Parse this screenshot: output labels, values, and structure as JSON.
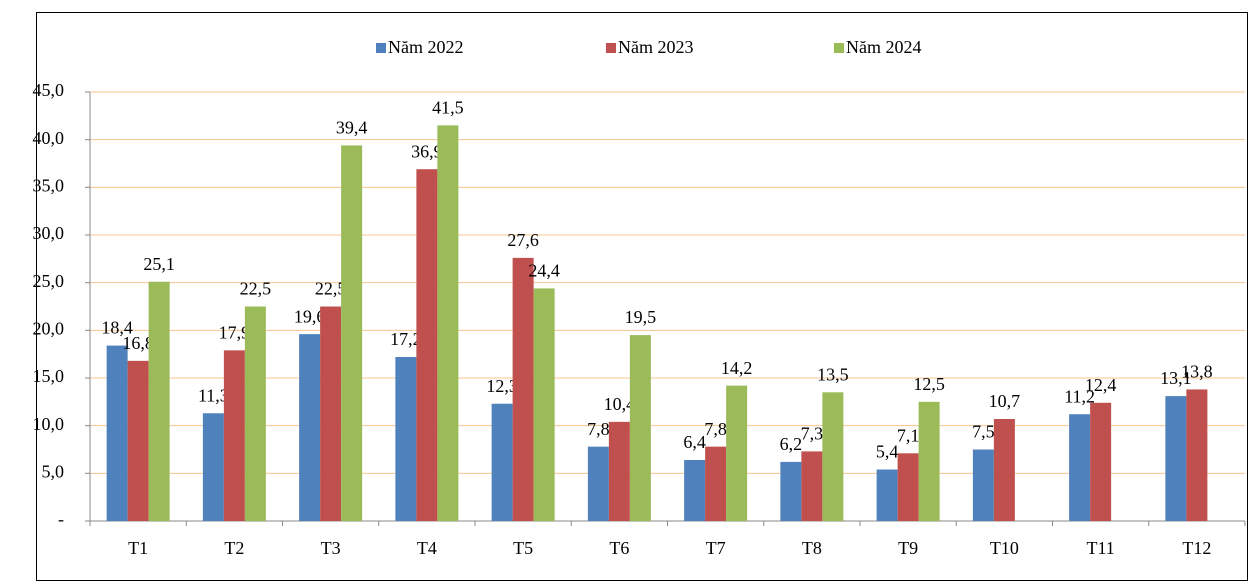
{
  "chart_data": {
    "type": "bar",
    "categories": [
      "T1",
      "T2",
      "T3",
      "T4",
      "T5",
      "T6",
      "T7",
      "T8",
      "T9",
      "T10",
      "T11",
      "T12"
    ],
    "series": [
      {
        "name": "Năm 2022",
        "color": "#4f81bd",
        "values": [
          18.4,
          11.3,
          19.6,
          17.2,
          12.3,
          7.8,
          6.4,
          6.2,
          5.4,
          7.5,
          11.2,
          13.1
        ],
        "value_labels": [
          "18,4",
          "11,3",
          "19,6",
          "17,2",
          "12,3",
          "7,8",
          "6,4",
          "6,2",
          "5,4",
          "7,5",
          "11,2",
          "13,1"
        ]
      },
      {
        "name": "Năm 2023",
        "color": "#c0504d",
        "values": [
          16.8,
          17.9,
          22.5,
          36.9,
          27.6,
          10.4,
          7.8,
          7.3,
          7.1,
          10.7,
          12.4,
          13.8
        ],
        "value_labels": [
          "16,8",
          "17,9",
          "22,5",
          "36,9",
          "27,6",
          "10,4",
          "7,8",
          "7,3",
          "7,1",
          "10,7",
          "12,4",
          "13,8"
        ]
      },
      {
        "name": "Năm 2024",
        "color": "#9bbb59",
        "values": [
          25.1,
          22.5,
          39.4,
          41.5,
          24.4,
          19.5,
          14.2,
          13.5,
          12.5,
          null,
          null,
          null
        ],
        "value_labels": [
          "25,1",
          "22,5",
          "39,4",
          "41,5",
          "24,4",
          "19,5",
          "14,2",
          "13,5",
          "12,5",
          null,
          null,
          null
        ]
      }
    ],
    "ylim": [
      0,
      45
    ],
    "yticks": [
      {
        "value": 0,
        "label": "-"
      },
      {
        "value": 5,
        "label": "5,0"
      },
      {
        "value": 10,
        "label": "10,0"
      },
      {
        "value": 15,
        "label": "15,0"
      },
      {
        "value": 20,
        "label": "20,0"
      },
      {
        "value": 25,
        "label": "25,0"
      },
      {
        "value": 30,
        "label": "30,0"
      },
      {
        "value": 35,
        "label": "35,0"
      },
      {
        "value": 40,
        "label": "40,0"
      },
      {
        "value": 45,
        "label": "45,0"
      }
    ],
    "grid": true,
    "legend": "top"
  }
}
